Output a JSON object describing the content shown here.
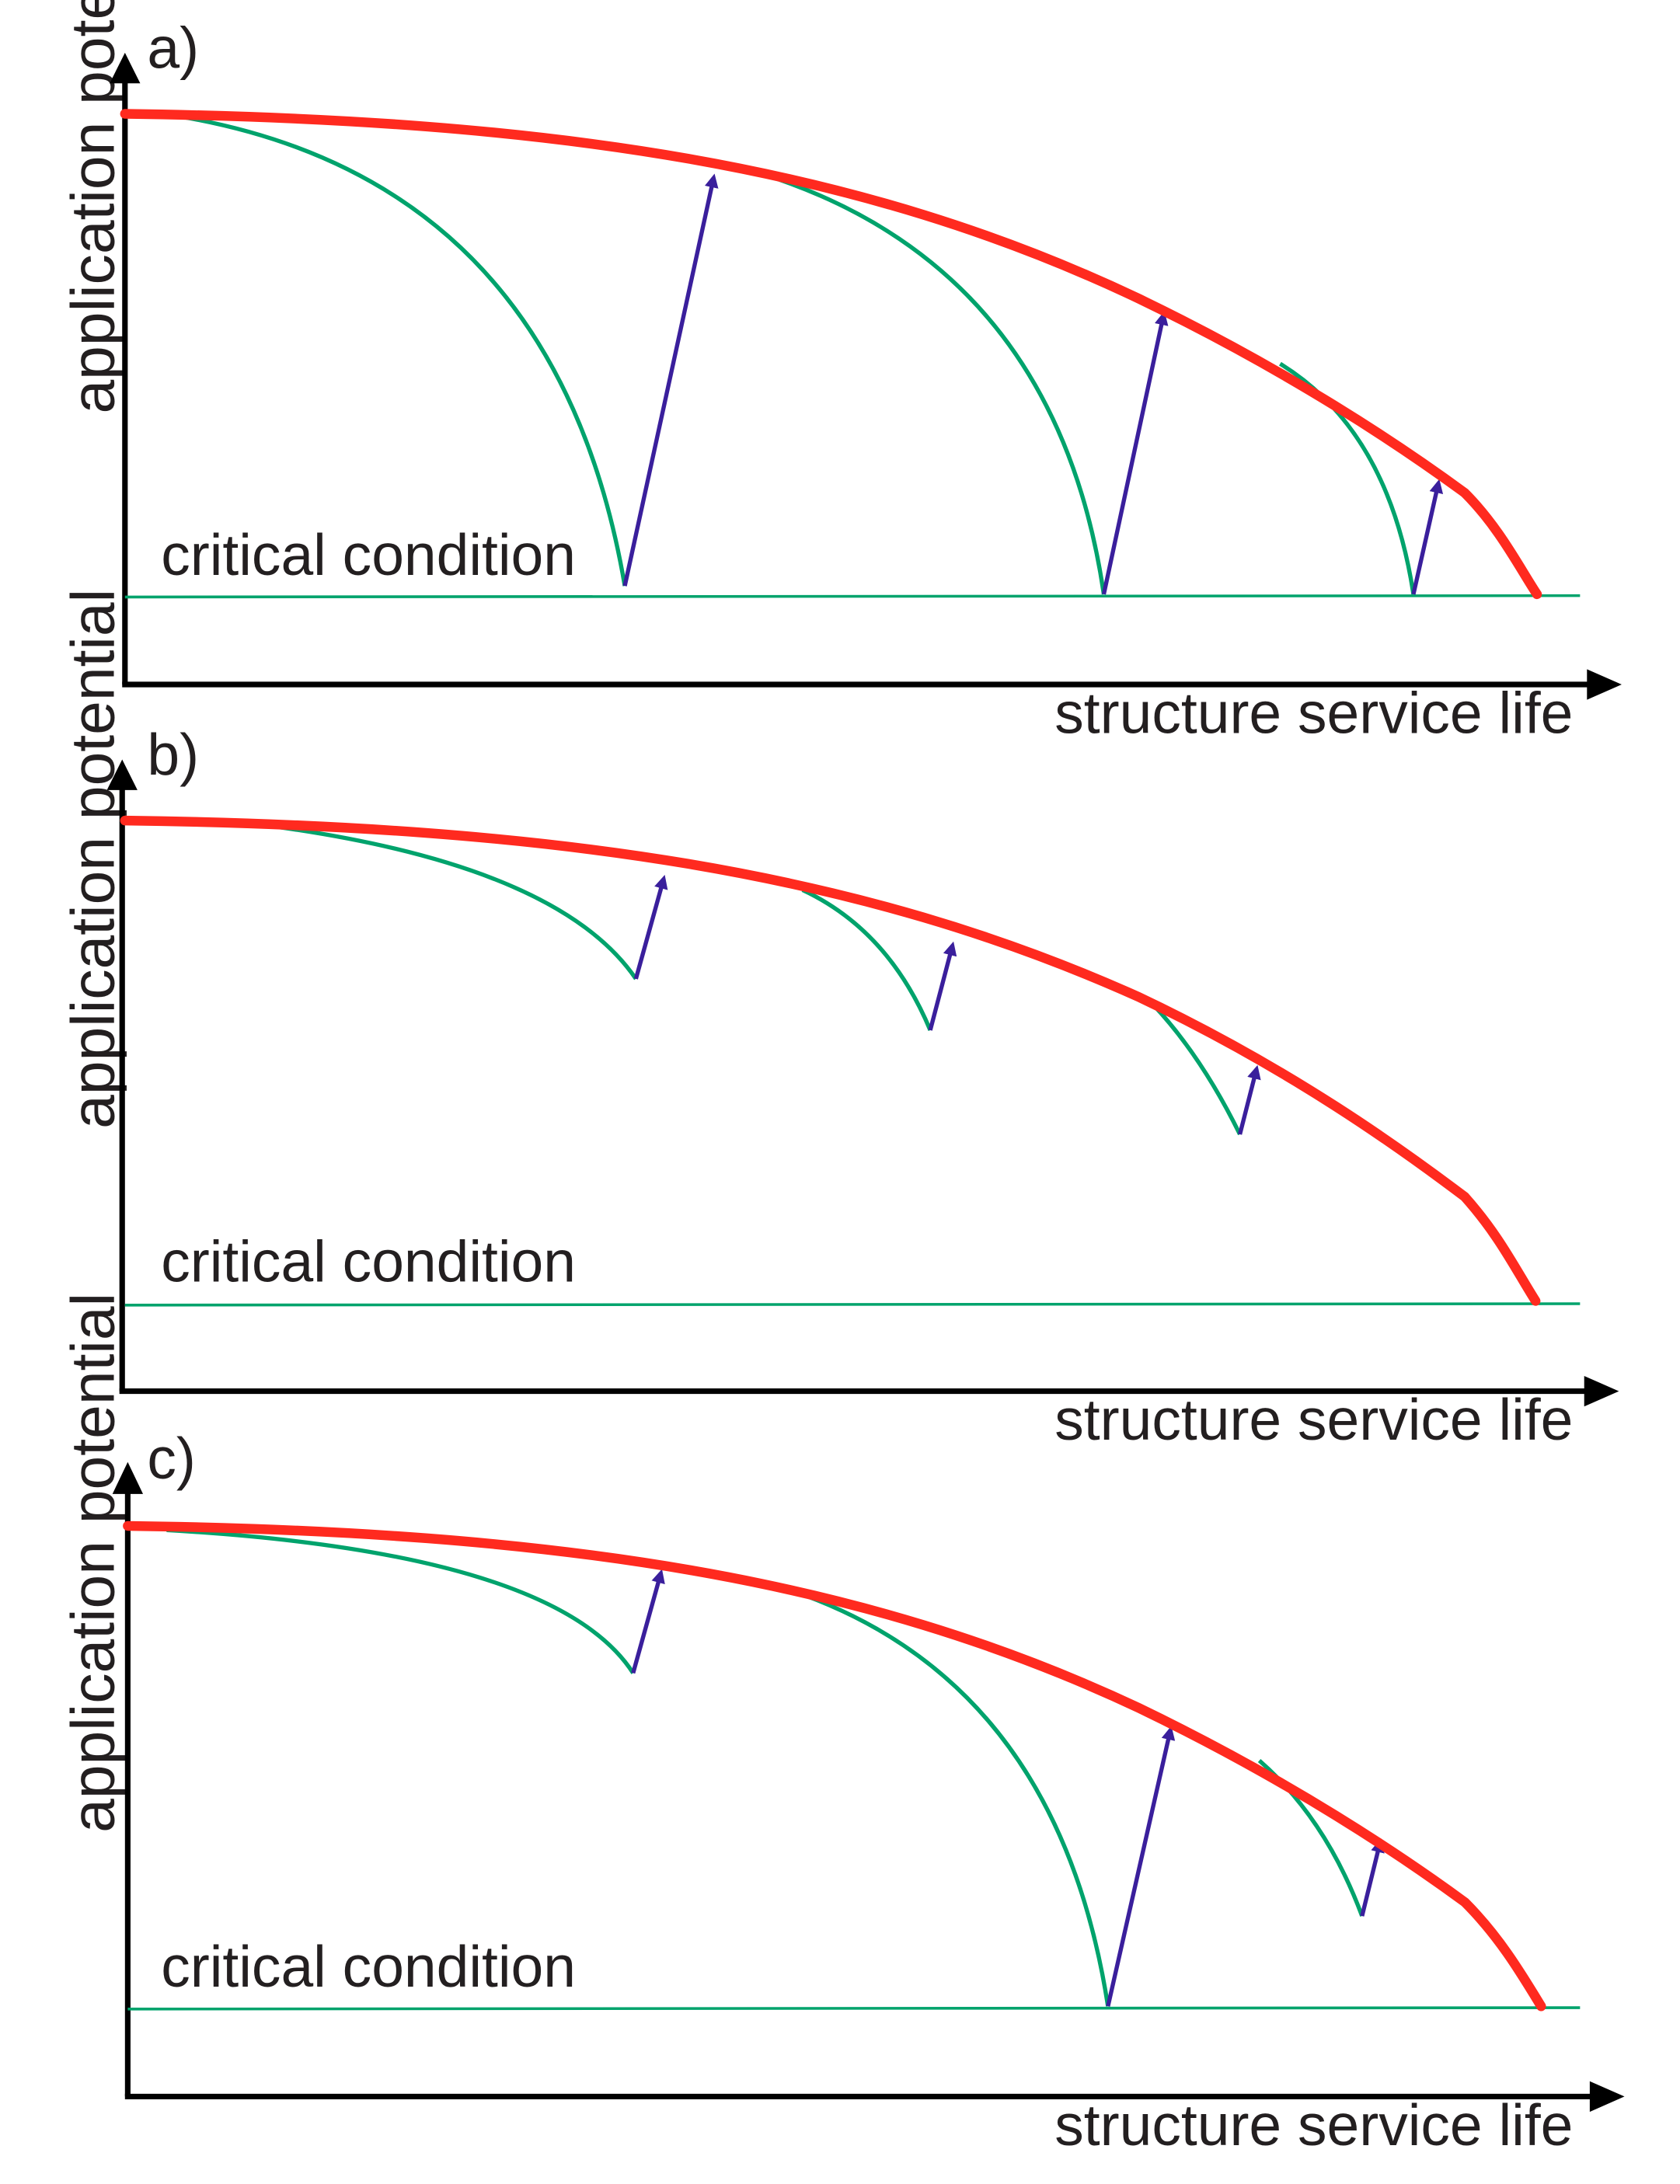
{
  "figure": {
    "panels": [
      {
        "id": "a",
        "label": "a)",
        "y_axis_label": "application potential",
        "x_axis_label": "structure service life",
        "critical_label": "critical condition"
      },
      {
        "id": "b",
        "label": "b)",
        "y_axis_label": "application potential",
        "x_axis_label": "structure service life",
        "critical_label": "critical condition"
      },
      {
        "id": "c",
        "label": "c)",
        "y_axis_label": "application potential",
        "x_axis_label": "structure service life",
        "critical_label": "critical condition"
      }
    ]
  },
  "colors": {
    "envelope": "#ff2a1f",
    "degradation": "#00a36c",
    "maintenance_arrow": "#3a1f9c",
    "axis": "#000000",
    "critical_line": "#00a36c"
  }
}
